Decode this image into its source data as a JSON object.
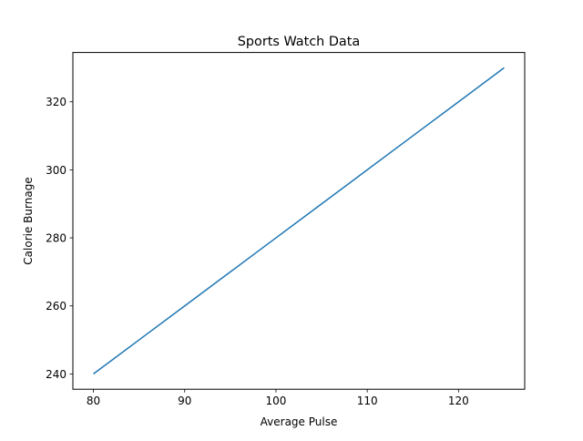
{
  "chart_data": {
    "type": "line",
    "title": "Sports Watch Data",
    "xlabel": "Average Pulse",
    "ylabel": "Calorie Burnage",
    "x": [
      80,
      85,
      90,
      95,
      100,
      105,
      110,
      115,
      120,
      125
    ],
    "series": [
      {
        "values": [
          240,
          250,
          260,
          270,
          280,
          290,
          300,
          310,
          320,
          330
        ],
        "color": "#1f77b4"
      }
    ],
    "xlim": [
      77.75,
      127.25
    ],
    "ylim": [
      235.5,
      334.5
    ],
    "xticks": [
      80,
      90,
      100,
      110,
      120
    ],
    "yticks": [
      240,
      260,
      280,
      300,
      320
    ],
    "grid": false
  }
}
